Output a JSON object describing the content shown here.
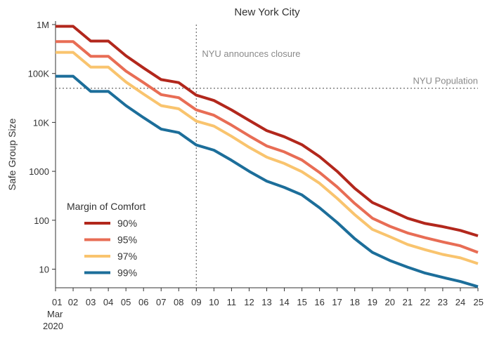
{
  "chart_data": {
    "type": "line",
    "title": "New York City",
    "ylabel": "Safe Group Size",
    "xlabel": "",
    "y_scale": "log",
    "ylim": [
      4,
      1000000
    ],
    "y_ticks": [
      10,
      100,
      1000,
      10000,
      100000,
      1000000
    ],
    "y_tick_labels": [
      "10",
      "100",
      "1000",
      "10K",
      "100K",
      "1M"
    ],
    "x": [
      "01",
      "02",
      "03",
      "04",
      "05",
      "06",
      "07",
      "08",
      "09",
      "10",
      "11",
      "12",
      "13",
      "14",
      "15",
      "16",
      "17",
      "18",
      "19",
      "20",
      "21",
      "22",
      "23",
      "24",
      "25"
    ],
    "x_sub_labels": [
      "Mar",
      "2020"
    ],
    "grid": false,
    "legend": {
      "title": "Margin of Comfort",
      "placement": "bottom-left"
    },
    "series": [
      {
        "name": "90%",
        "color": "#b2271c",
        "values": [
          920000,
          920000,
          460000,
          460000,
          230000,
          130000,
          75000,
          65000,
          36000,
          28000,
          18000,
          11000,
          6800,
          5100,
          3500,
          2000,
          1000,
          450,
          230,
          160,
          110,
          86,
          74,
          62,
          48
        ]
      },
      {
        "name": "95%",
        "color": "#e86d55",
        "values": [
          450000,
          450000,
          225000,
          225000,
          112000,
          65000,
          37000,
          32000,
          18000,
          14000,
          8800,
          5300,
          3300,
          2500,
          1700,
          950,
          480,
          220,
          110,
          75,
          55,
          44,
          36,
          30,
          22
        ]
      },
      {
        "name": "97%",
        "color": "#f9c46e",
        "values": [
          270000,
          270000,
          135000,
          135000,
          67000,
          38000,
          22000,
          19000,
          10600,
          8400,
          5200,
          3100,
          1950,
          1450,
          980,
          570,
          280,
          130,
          65,
          46,
          32,
          25,
          20,
          17,
          13
        ]
      },
      {
        "name": "99%",
        "color": "#1c6e9a",
        "values": [
          88000,
          88000,
          43000,
          43000,
          22000,
          12500,
          7300,
          6200,
          3450,
          2700,
          1680,
          1000,
          630,
          470,
          330,
          180,
          90,
          42,
          22,
          15,
          11,
          8.3,
          6.8,
          5.6,
          4.4
        ]
      }
    ],
    "annotations": [
      {
        "type": "vline",
        "x": "09",
        "label": "NYU announces closure"
      },
      {
        "type": "hline",
        "y": 50000,
        "label": "NYU Population"
      }
    ]
  }
}
